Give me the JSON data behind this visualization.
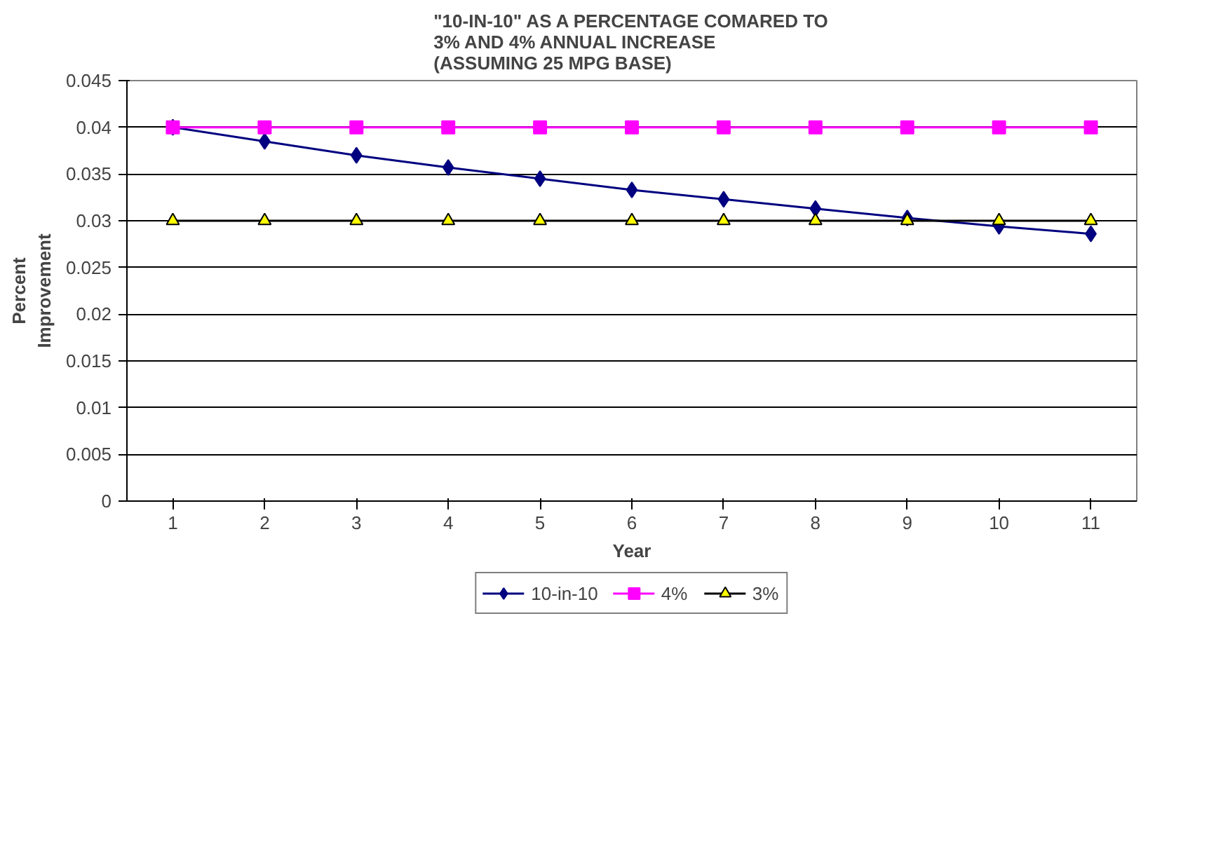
{
  "chart_data": {
    "type": "line",
    "title": "\"10-IN-10\" AS A PERCENTAGE COMARED TO\n3% AND 4% ANNUAL INCREASE\n(ASSUMING 25 MPG BASE)",
    "xlabel": "Year",
    "ylabel": "Percent\nImprovement",
    "categories": [
      "1",
      "2",
      "3",
      "4",
      "5",
      "6",
      "7",
      "8",
      "9",
      "10",
      "11"
    ],
    "ylim": [
      0,
      0.045
    ],
    "yticks": [
      0,
      0.005,
      0.01,
      0.015,
      0.02,
      0.025,
      0.03,
      0.035,
      0.04,
      0.045
    ],
    "grid": "y",
    "legend": "bottom",
    "series": [
      {
        "name": "10-in-10",
        "color": "#000080",
        "marker": "diamond",
        "values": [
          0.04,
          0.0385,
          0.037,
          0.0357,
          0.0345,
          0.0333,
          0.0323,
          0.0313,
          0.0303,
          0.0294,
          0.0286
        ]
      },
      {
        "name": "4%",
        "color": "#ff00ff",
        "marker": "square",
        "values": [
          0.04,
          0.04,
          0.04,
          0.04,
          0.04,
          0.04,
          0.04,
          0.04,
          0.04,
          0.04,
          0.04
        ]
      },
      {
        "name": "3%",
        "color": "#ffff00",
        "marker": "triangle",
        "values": [
          0.03,
          0.03,
          0.03,
          0.03,
          0.03,
          0.03,
          0.03,
          0.03,
          0.03,
          0.03,
          0.03
        ]
      }
    ]
  }
}
